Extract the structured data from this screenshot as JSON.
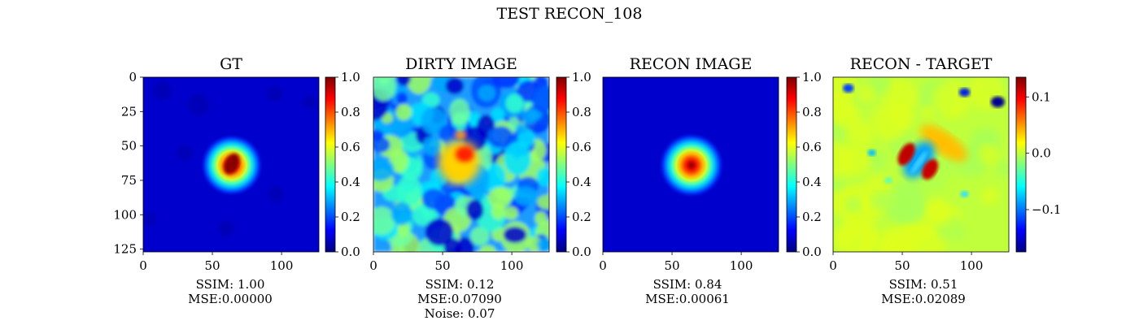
{
  "figure": {
    "suptitle": "TEST RECON_108"
  },
  "colors": {
    "jet": [
      "#00007f",
      "#0000ff",
      "#007fff",
      "#00ffff",
      "#7fff7f",
      "#ffff00",
      "#ff7f00",
      "#ff0000",
      "#7f0000"
    ]
  },
  "chart_data": [
    {
      "type": "heatmap",
      "title": "GT",
      "image": "gaussian-source",
      "x_ticks": [
        "0",
        "50",
        "100"
      ],
      "y_ticks": [
        "0",
        "25",
        "50",
        "75",
        "100",
        "125"
      ],
      "xlim": [
        0,
        127
      ],
      "ylim": [
        127,
        0
      ],
      "colorbar": {
        "min": 0.0,
        "max": 1.0,
        "ticks": [
          "0.0",
          "0.2",
          "0.4",
          "0.6",
          "0.8",
          "1.0"
        ],
        "tick_values": [
          0.0,
          0.2,
          0.4,
          0.6,
          0.8,
          1.0
        ]
      },
      "caption": [
        "SSIM: 1.00",
        "MSE:0.00000"
      ]
    },
    {
      "type": "heatmap",
      "title": "DIRTY IMAGE",
      "image": "noisy-reconstruction",
      "x_ticks": [
        "0",
        "50",
        "100"
      ],
      "xlim": [
        0,
        127
      ],
      "ylim": [
        127,
        0
      ],
      "colorbar": {
        "min": 0.0,
        "max": 1.0,
        "ticks": [
          "0.0",
          "0.2",
          "0.4",
          "0.6",
          "0.8",
          "1.0"
        ],
        "tick_values": [
          0.0,
          0.2,
          0.4,
          0.6,
          0.8,
          1.0
        ]
      },
      "caption": [
        "SSIM: 0.12",
        "MSE:0.07090",
        "Noise: 0.07"
      ]
    },
    {
      "type": "heatmap",
      "title": "RECON IMAGE",
      "image": "smooth-gaussian",
      "x_ticks": [
        "0",
        "50",
        "100"
      ],
      "xlim": [
        0,
        127
      ],
      "ylim": [
        127,
        0
      ],
      "colorbar": {
        "min": 0.0,
        "max": 1.0,
        "ticks": [
          "0.0",
          "0.2",
          "0.4",
          "0.6",
          "0.8",
          "1.0"
        ],
        "tick_values": [
          0.0,
          0.2,
          0.4,
          0.6,
          0.8,
          1.0
        ]
      },
      "caption": [
        "SSIM: 0.84",
        "MSE:0.00061"
      ]
    },
    {
      "type": "heatmap",
      "title": "RECON - TARGET",
      "image": "residual",
      "x_ticks": [
        "0",
        "50",
        "100"
      ],
      "xlim": [
        0,
        127
      ],
      "ylim": [
        127,
        0
      ],
      "colorbar": {
        "min": -0.175,
        "max": 0.135,
        "ticks": [
          "−0.1",
          "0.0",
          "0.1"
        ],
        "tick_values": [
          -0.1,
          0.0,
          0.1
        ]
      },
      "caption": [
        "SSIM: 0.51",
        "MSE:0.02089"
      ]
    }
  ]
}
